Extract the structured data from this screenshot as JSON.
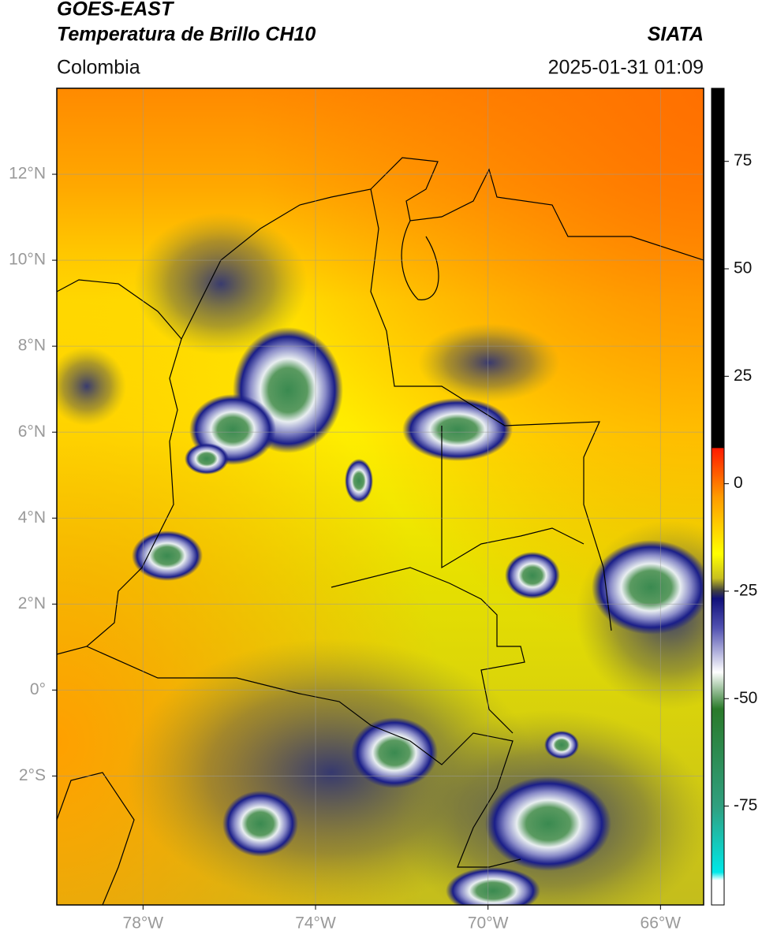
{
  "header": {
    "title": "GOES-EAST",
    "subtitle": "Temperatura de Brillo CH10",
    "source": "SIATA",
    "region": "Colombia",
    "datetime": "2025-01-31 01:09"
  },
  "map": {
    "xlim": [
      -80,
      -65
    ],
    "ylim": [
      -5,
      14
    ],
    "xticks": [
      {
        "value": -78,
        "label": "78°W"
      },
      {
        "value": -74,
        "label": "74°W"
      },
      {
        "value": -70,
        "label": "70°W"
      },
      {
        "value": -66,
        "label": "66°W"
      }
    ],
    "yticks": [
      {
        "value": 12,
        "label": "12°N"
      },
      {
        "value": 10,
        "label": "10°N"
      },
      {
        "value": 8,
        "label": "8°N"
      },
      {
        "value": 6,
        "label": "6°N"
      },
      {
        "value": 4,
        "label": "4°N"
      },
      {
        "value": 2,
        "label": "2°N"
      },
      {
        "value": 0,
        "label": "0°"
      },
      {
        "value": -2,
        "label": "2°S"
      }
    ],
    "grid": true
  },
  "colorbar": {
    "lim": [
      -98,
      92
    ],
    "ticks": [
      75,
      50,
      25,
      0,
      -25,
      -50,
      -75
    ]
  }
}
